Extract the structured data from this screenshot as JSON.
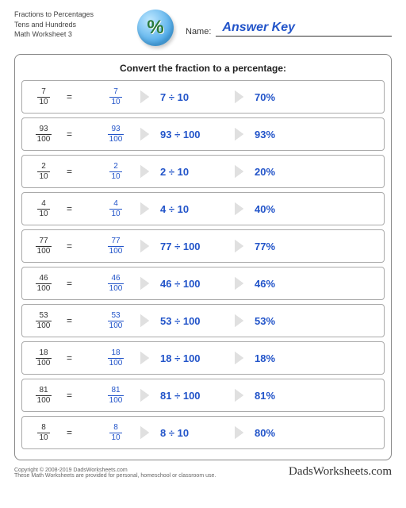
{
  "header": {
    "title_line1": "Fractions to Percentages",
    "title_line2": "Tens and Hundreds",
    "title_line3": "Math Worksheet 3",
    "icon_glyph": "%",
    "name_label": "Name:",
    "name_value": "Answer Key"
  },
  "instruction": "Convert the fraction to a percentage:",
  "colors": {
    "answer_blue": "#2254c9",
    "border_gray": "#aaaaaa",
    "frame_gray": "#888888",
    "arrow_fill": "#e0e0e0",
    "text": "#333333"
  },
  "problems": [
    {
      "numerator": "7",
      "denominator": "10",
      "division": "7 ÷ 10",
      "percent": "70%"
    },
    {
      "numerator": "93",
      "denominator": "100",
      "division": "93 ÷ 100",
      "percent": "93%"
    },
    {
      "numerator": "2",
      "denominator": "10",
      "division": "2 ÷ 10",
      "percent": "20%"
    },
    {
      "numerator": "4",
      "denominator": "10",
      "division": "4 ÷ 10",
      "percent": "40%"
    },
    {
      "numerator": "77",
      "denominator": "100",
      "division": "77 ÷ 100",
      "percent": "77%"
    },
    {
      "numerator": "46",
      "denominator": "100",
      "division": "46 ÷ 100",
      "percent": "46%"
    },
    {
      "numerator": "53",
      "denominator": "100",
      "division": "53 ÷ 100",
      "percent": "53%"
    },
    {
      "numerator": "18",
      "denominator": "100",
      "division": "18 ÷ 100",
      "percent": "18%"
    },
    {
      "numerator": "81",
      "denominator": "100",
      "division": "81 ÷ 100",
      "percent": "81%"
    },
    {
      "numerator": "8",
      "denominator": "10",
      "division": "8 ÷ 10",
      "percent": "80%"
    }
  ],
  "footer": {
    "copyright": "Copyright © 2008-2019 DadsWorksheets.com",
    "note": "These Math Worksheets are provided for personal, homeschool or classroom use.",
    "brand": "DadsWorksheets.com"
  }
}
